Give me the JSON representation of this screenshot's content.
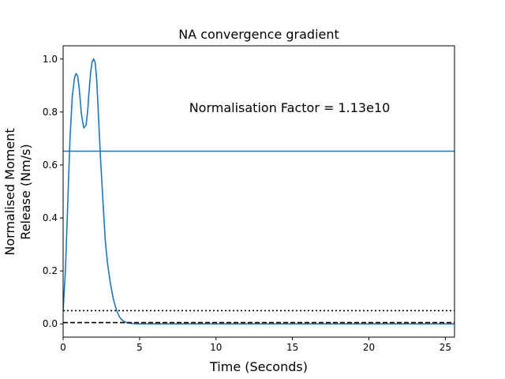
{
  "chart_data": {
    "type": "line",
    "title": "NA convergence gradient",
    "xlabel": "Time (Seconds)",
    "ylabel_lines": [
      "Normalised Moment",
      "Release (Nm/s)"
    ],
    "annotation": "Normalisation Factor = 1.13e10",
    "xlim": [
      0,
      25.6
    ],
    "ylim": [
      -0.05,
      1.05
    ],
    "xticks": [
      0,
      5,
      10,
      15,
      20,
      25
    ],
    "yticks": [
      0.0,
      0.2,
      0.4,
      0.6,
      0.8,
      1.0
    ],
    "xtick_labels": [
      "0",
      "5",
      "10",
      "15",
      "20",
      "25"
    ],
    "ytick_labels": [
      "0.0",
      "0.2",
      "0.4",
      "0.6",
      "0.8",
      "1.0"
    ],
    "grid": false,
    "series": [
      {
        "color": "#1f77b4",
        "style": "solid",
        "x": [
          0,
          0.15,
          0.3,
          0.45,
          0.6,
          0.75,
          0.85,
          0.95,
          1.05,
          1.2,
          1.35,
          1.5,
          1.6,
          1.7,
          1.8,
          1.9,
          2.0,
          2.1,
          2.2,
          2.3,
          2.45,
          2.6,
          2.75,
          2.9,
          3.1,
          3.3,
          3.5,
          3.7,
          3.9,
          4.1,
          4.3,
          4.6,
          5.0,
          6.0,
          8.0,
          12.0,
          16.0,
          20.0,
          25.6
        ],
        "y": [
          0.05,
          0.2,
          0.45,
          0.7,
          0.86,
          0.93,
          0.945,
          0.935,
          0.89,
          0.79,
          0.74,
          0.75,
          0.8,
          0.88,
          0.95,
          0.99,
          1.0,
          0.985,
          0.92,
          0.8,
          0.62,
          0.47,
          0.32,
          0.23,
          0.15,
          0.09,
          0.05,
          0.025,
          0.012,
          0.006,
          0.003,
          0.001,
          0.0,
          0.0,
          0.0,
          0.0,
          0.0,
          0.0,
          0.0
        ]
      },
      {
        "color": "#1f77b4",
        "style": "solid",
        "x": [
          0,
          25.6
        ],
        "y": [
          0.652,
          0.652
        ]
      },
      {
        "color": "#000000",
        "style": "dotted",
        "x": [
          0,
          25.6
        ],
        "y": [
          0.05,
          0.05
        ]
      },
      {
        "color": "#000000",
        "style": "dashed",
        "x": [
          0,
          25.6
        ],
        "y": [
          0.005,
          0.005
        ]
      }
    ]
  }
}
